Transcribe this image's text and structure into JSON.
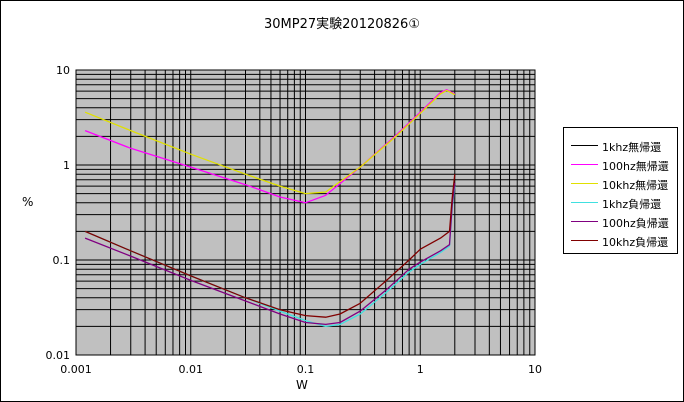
{
  "chart_data": {
    "type": "line",
    "title": "30MP27実験20120826①",
    "xlabel": "W",
    "ylabel": "%",
    "xscale": "log",
    "yscale": "log",
    "xlim": [
      0.001,
      10
    ],
    "ylim": [
      0.01,
      10
    ],
    "x_tick_labels": [
      "0.001",
      "0.01",
      "0.1",
      "1",
      "10"
    ],
    "y_tick_labels": [
      "0.01",
      "0.1",
      "1",
      "10"
    ],
    "grid": true,
    "plot_background": "#c0c0c0",
    "legend_position": "right",
    "series": [
      {
        "name": "1khz無帰還",
        "color": "#000000",
        "x": [],
        "y": []
      },
      {
        "name": "100hz無帰還",
        "color": "#ff00ff",
        "x": [
          0.0012,
          0.003,
          0.01,
          0.03,
          0.06,
          0.1,
          0.15,
          0.3,
          0.6,
          1.0,
          1.5,
          1.7,
          2.0
        ],
        "y": [
          2.3,
          1.5,
          0.95,
          0.62,
          0.46,
          0.4,
          0.48,
          0.95,
          2.0,
          3.6,
          5.8,
          6.2,
          5.6
        ]
      },
      {
        "name": "10khz無帰還",
        "color": "#e0e000",
        "x": [
          0.0012,
          0.003,
          0.01,
          0.03,
          0.06,
          0.1,
          0.15,
          0.3,
          0.6,
          1.0,
          1.5,
          1.7,
          2.0
        ],
        "y": [
          3.6,
          2.3,
          1.3,
          0.8,
          0.6,
          0.5,
          0.52,
          0.95,
          1.95,
          3.5,
          5.6,
          6.1,
          5.5
        ]
      },
      {
        "name": "1khz負帰還",
        "color": "#40e0e0",
        "x": [
          0.0012,
          0.003,
          0.01,
          0.03,
          0.06,
          0.1,
          0.15,
          0.2,
          0.3,
          0.5,
          0.8,
          1.0,
          1.5,
          1.8,
          1.9,
          2.0
        ],
        "y": [
          0.2,
          0.125,
          0.068,
          0.04,
          0.029,
          0.023,
          0.02,
          0.021,
          0.027,
          0.045,
          0.075,
          0.09,
          0.12,
          0.14,
          0.35,
          0.6
        ]
      },
      {
        "name": "100hz負帰還",
        "color": "#800080",
        "x": [
          0.0012,
          0.003,
          0.01,
          0.03,
          0.06,
          0.1,
          0.15,
          0.2,
          0.3,
          0.5,
          0.8,
          1.0,
          1.5,
          1.8,
          1.9,
          2.0
        ],
        "y": [
          0.17,
          0.11,
          0.061,
          0.037,
          0.027,
          0.022,
          0.021,
          0.022,
          0.029,
          0.048,
          0.08,
          0.095,
          0.125,
          0.145,
          0.38,
          0.65
        ]
      },
      {
        "name": "10khz負帰還",
        "color": "#800000",
        "x": [
          0.0012,
          0.003,
          0.01,
          0.03,
          0.06,
          0.1,
          0.15,
          0.2,
          0.3,
          0.5,
          0.8,
          1.0,
          1.5,
          1.8,
          1.9,
          2.0
        ],
        "y": [
          0.2,
          0.125,
          0.068,
          0.04,
          0.03,
          0.026,
          0.025,
          0.027,
          0.035,
          0.06,
          0.1,
          0.13,
          0.17,
          0.2,
          0.45,
          0.8
        ]
      }
    ]
  }
}
